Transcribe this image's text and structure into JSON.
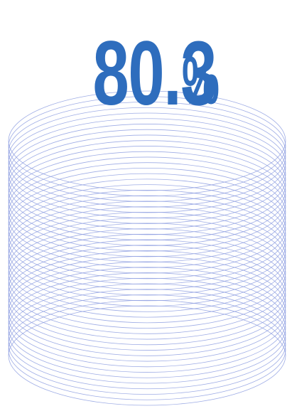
{
  "stat": {
    "value": "80.3",
    "unit": "%"
  },
  "colors": {
    "text": "#2e6dbd",
    "rings": "#8d9ee0"
  },
  "decoration": {
    "shape": "stacked-ellipse-cylinder",
    "ring_count": 40
  }
}
